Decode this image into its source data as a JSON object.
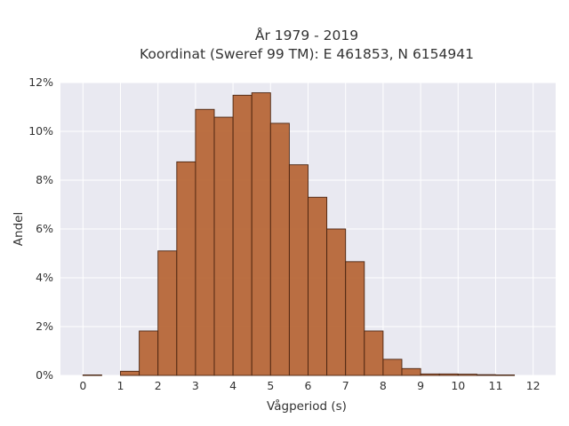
{
  "chart_data": {
    "type": "bar",
    "title_line1": "År 1979 - 2019",
    "title_line2": "Koordinat (Sweref 99 TM): E 461853, N 6154941",
    "xlabel": "Vågperiod (s)",
    "ylabel": "Andel",
    "x_ticks": [
      "0",
      "1",
      "2",
      "3",
      "4",
      "5",
      "6",
      "7",
      "8",
      "9",
      "10",
      "11",
      "12"
    ],
    "y_ticks": [
      "0%",
      "2%",
      "4%",
      "6%",
      "8%",
      "10%",
      "12%"
    ],
    "xlim": [
      -0.6,
      12.6
    ],
    "ylim": [
      0,
      12
    ],
    "bin_width": 0.5,
    "bins": [
      {
        "x0": 0.0,
        "value": 0.02
      },
      {
        "x0": 1.0,
        "value": 0.17
      },
      {
        "x0": 1.5,
        "value": 1.82
      },
      {
        "x0": 2.0,
        "value": 5.1
      },
      {
        "x0": 2.5,
        "value": 8.75
      },
      {
        "x0": 3.0,
        "value": 10.9
      },
      {
        "x0": 3.5,
        "value": 10.58
      },
      {
        "x0": 4.0,
        "value": 11.48
      },
      {
        "x0": 4.5,
        "value": 11.58
      },
      {
        "x0": 5.0,
        "value": 10.33
      },
      {
        "x0": 5.5,
        "value": 8.63
      },
      {
        "x0": 6.0,
        "value": 7.3
      },
      {
        "x0": 6.5,
        "value": 6.0
      },
      {
        "x0": 7.0,
        "value": 4.66
      },
      {
        "x0": 7.5,
        "value": 1.82
      },
      {
        "x0": 8.0,
        "value": 0.66
      },
      {
        "x0": 8.5,
        "value": 0.28
      },
      {
        "x0": 9.0,
        "value": 0.06
      },
      {
        "x0": 9.5,
        "value": 0.06
      },
      {
        "x0": 10.0,
        "value": 0.05
      },
      {
        "x0": 10.5,
        "value": 0.03
      },
      {
        "x0": 11.0,
        "value": 0.02
      }
    ],
    "bar_color": "#b5602f",
    "bar_edge_color": "#4a2410",
    "plot_background": "#e9e9f1",
    "grid": true
  }
}
